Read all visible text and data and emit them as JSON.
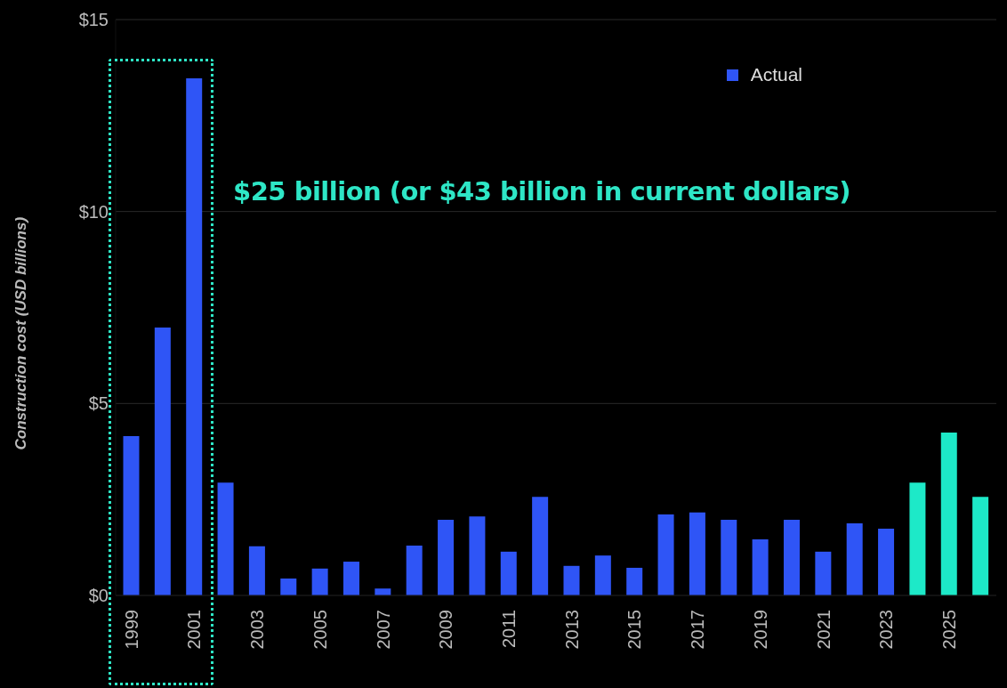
{
  "chart_data": {
    "type": "bar",
    "ylabel": "Construction cost (USD billions)",
    "categories": [
      "1999",
      null,
      "2001",
      null,
      "2003",
      null,
      "2005",
      null,
      "2007",
      null,
      "2009",
      null,
      "2011",
      null,
      "2013",
      null,
      "2015",
      null,
      "2017",
      null,
      "2019",
      null,
      "2021",
      null,
      "2023",
      null,
      "2025",
      null
    ],
    "series": [
      {
        "name": "Actual",
        "color": "#2f55f6",
        "values": [
          4.15,
          6.98,
          13.47,
          2.94,
          1.28,
          0.44,
          0.7,
          0.88,
          0.18,
          1.3,
          1.97,
          2.06,
          1.14,
          2.57,
          0.77,
          1.04,
          0.72,
          2.11,
          2.16,
          1.97,
          1.46,
          1.97,
          1.14,
          1.88,
          1.74,
          null,
          null,
          null
        ]
      },
      {
        "color": "#1de9c8",
        "values": [
          null,
          null,
          null,
          null,
          null,
          null,
          null,
          null,
          null,
          null,
          null,
          null,
          null,
          null,
          null,
          null,
          null,
          null,
          null,
          null,
          null,
          null,
          null,
          null,
          null,
          2.94,
          4.24,
          2.57
        ]
      }
    ],
    "stacked": true,
    "ylim": [
      0,
      15
    ],
    "yticks": [
      {
        "value": 0,
        "label": "$0"
      },
      {
        "value": 5,
        "label": "$5"
      },
      {
        "value": 10,
        "label": "$10"
      },
      {
        "value": 15,
        "label": "$15"
      }
    ],
    "grid": "y",
    "legend": "top right",
    "annotations": [
      "$25 billion (or $43 billion in current dollars)"
    ]
  }
}
